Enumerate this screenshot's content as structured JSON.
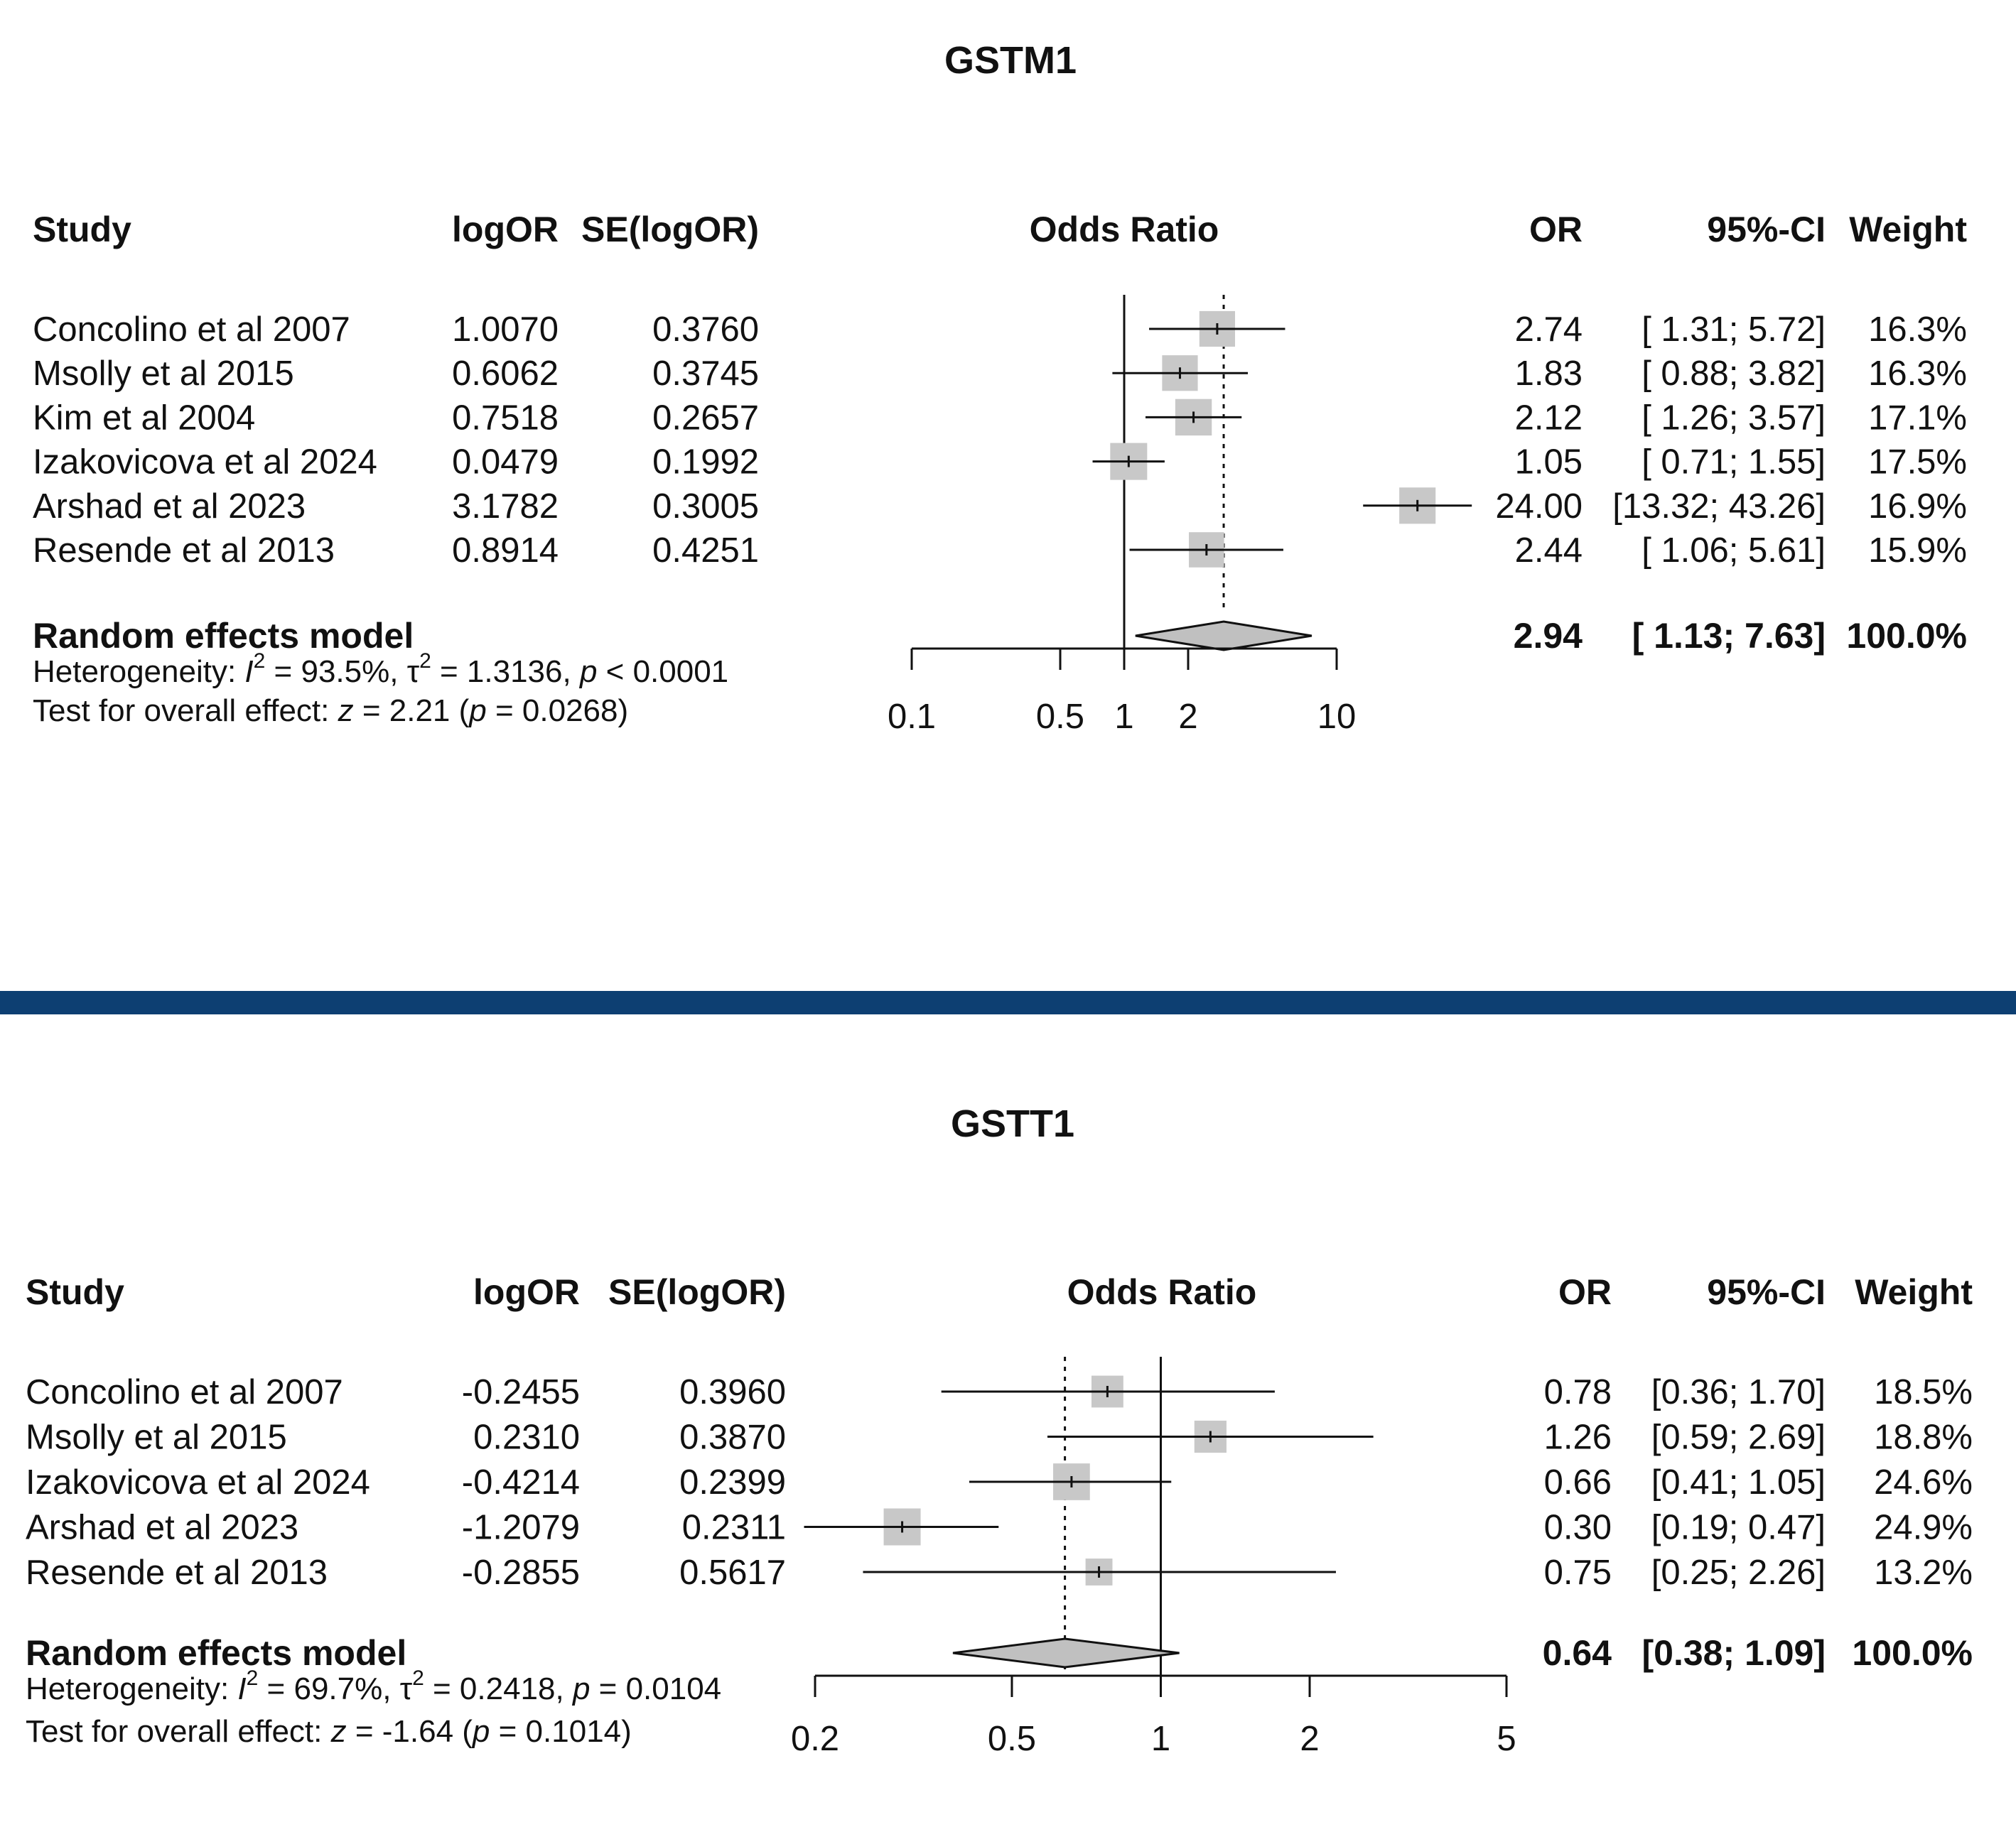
{
  "colors": {
    "divider": "#0d3f72",
    "box_fill": "#c8c8c8",
    "diamond_fill": "#c0c0c0",
    "line": "#111111",
    "background": "#ffffff"
  },
  "chart_data": [
    {
      "type": "forest",
      "title": "GSTM1",
      "columns": {
        "study": "Study",
        "logor": "logOR",
        "se": "SE(logOR)",
        "plot": "Odds Ratio",
        "or": "OR",
        "ci": "95%-CI",
        "weight": "Weight"
      },
      "x_scale": "log",
      "xlim": [
        0.1,
        10
      ],
      "x_ticks": [
        0.1,
        0.5,
        1,
        2,
        10
      ],
      "x_tick_labels": [
        "0.1",
        "0.5",
        "1",
        "2",
        "10"
      ],
      "null_line": 1,
      "pooled_line": 2.94,
      "studies": [
        {
          "name": "Concolino et al 2007",
          "logor": "1.0070",
          "se": "0.3760",
          "or": 2.74,
          "ci_low": 1.31,
          "ci_high": 5.72,
          "weight": 16.3,
          "or_text": "2.74",
          "ci_text": "[ 1.31;  5.72]",
          "weight_text": "16.3%"
        },
        {
          "name": "Msolly et al 2015",
          "logor": "0.6062",
          "se": "0.3745",
          "or": 1.83,
          "ci_low": 0.88,
          "ci_high": 3.82,
          "weight": 16.3,
          "or_text": "1.83",
          "ci_text": "[ 0.88;  3.82]",
          "weight_text": "16.3%"
        },
        {
          "name": "Kim et al 2004",
          "logor": "0.7518",
          "se": "0.2657",
          "or": 2.12,
          "ci_low": 1.26,
          "ci_high": 3.57,
          "weight": 17.1,
          "or_text": "2.12",
          "ci_text": "[ 1.26;  3.57]",
          "weight_text": "17.1%"
        },
        {
          "name": "Izakovicova et al 2024",
          "logor": "0.0479",
          "se": "0.1992",
          "or": 1.05,
          "ci_low": 0.71,
          "ci_high": 1.55,
          "weight": 17.5,
          "or_text": "1.05",
          "ci_text": "[ 0.71;  1.55]",
          "weight_text": "17.5%"
        },
        {
          "name": "Arshad et al 2023",
          "logor": "3.1782",
          "se": "0.3005",
          "or": 24.0,
          "ci_low": 13.32,
          "ci_high": 43.26,
          "weight": 16.9,
          "or_text": "24.00",
          "ci_text": "[13.32; 43.26]",
          "weight_text": "16.9%"
        },
        {
          "name": "Resende et al 2013",
          "logor": "0.8914",
          "se": "0.4251",
          "or": 2.44,
          "ci_low": 1.06,
          "ci_high": 5.61,
          "weight": 15.9,
          "or_text": "2.44",
          "ci_text": "[ 1.06;  5.61]",
          "weight_text": "15.9%"
        }
      ],
      "model": {
        "label": "Random effects model",
        "or": 2.94,
        "ci_low": 1.13,
        "ci_high": 7.63,
        "or_text": "2.94",
        "ci_text": "[ 1.13;  7.63]",
        "weight_text": "100.0%"
      },
      "heterogeneity": {
        "prefix": "Heterogeneity: ",
        "i_symbol": "I",
        "sup1": "2",
        "i2_text": " = 93.5%, ",
        "tau_symbol": "τ",
        "sup2": "2",
        "tau2_text": " = 1.3136, ",
        "p_symbol": "p",
        "p_text": " < 0.0001"
      },
      "overall": {
        "prefix": "Test for overall effect: ",
        "z_symbol": "z",
        "z_text": " = 2.21 (",
        "p_symbol": "p",
        "p_text": " = 0.0268)"
      }
    },
    {
      "type": "forest",
      "title": "GSTT1",
      "columns": {
        "study": "Study",
        "logor": "logOR",
        "se": "SE(logOR)",
        "plot": "Odds Ratio",
        "or": "OR",
        "ci": "95%-CI",
        "weight": "Weight"
      },
      "x_scale": "log",
      "xlim": [
        0.2,
        5
      ],
      "x_ticks": [
        0.2,
        0.5,
        1,
        2,
        5
      ],
      "x_tick_labels": [
        "0.2",
        "0.5",
        "1",
        "2",
        "5"
      ],
      "null_line": 1,
      "pooled_line": 0.64,
      "studies": [
        {
          "name": "Concolino et al 2007",
          "logor": "-0.2455",
          "se": "0.3960",
          "or": 0.78,
          "ci_low": 0.36,
          "ci_high": 1.7,
          "weight": 18.5,
          "or_text": "0.78",
          "ci_text": "[0.36; 1.70]",
          "weight_text": "18.5%"
        },
        {
          "name": "Msolly et al 2015",
          "logor": "0.2310",
          "se": "0.3870",
          "or": 1.26,
          "ci_low": 0.59,
          "ci_high": 2.69,
          "weight": 18.8,
          "or_text": "1.26",
          "ci_text": "[0.59; 2.69]",
          "weight_text": "18.8%"
        },
        {
          "name": "Izakovicova et al 2024",
          "logor": "-0.4214",
          "se": "0.2399",
          "or": 0.66,
          "ci_low": 0.41,
          "ci_high": 1.05,
          "weight": 24.6,
          "or_text": "0.66",
          "ci_text": "[0.41; 1.05]",
          "weight_text": "24.6%"
        },
        {
          "name": "Arshad et al 2023",
          "logor": "-1.2079",
          "se": "0.2311",
          "or": 0.3,
          "ci_low": 0.19,
          "ci_high": 0.47,
          "weight": 24.9,
          "or_text": "0.30",
          "ci_text": "[0.19; 0.47]",
          "weight_text": "24.9%"
        },
        {
          "name": "Resende et al 2013",
          "logor": "-0.2855",
          "se": "0.5617",
          "or": 0.75,
          "ci_low": 0.25,
          "ci_high": 2.26,
          "weight": 13.2,
          "or_text": "0.75",
          "ci_text": "[0.25; 2.26]",
          "weight_text": "13.2%"
        }
      ],
      "model": {
        "label": "Random effects model",
        "or": 0.64,
        "ci_low": 0.38,
        "ci_high": 1.09,
        "or_text": "0.64",
        "ci_text": "[0.38; 1.09]",
        "weight_text": "100.0%"
      },
      "heterogeneity": {
        "prefix": "Heterogeneity: ",
        "i_symbol": "I",
        "sup1": "2",
        "i2_text": " = 69.7%, ",
        "tau_symbol": "τ",
        "sup2": "2",
        "tau2_text": " = 0.2418, ",
        "p_symbol": "p",
        "p_text": " = 0.0104"
      },
      "overall": {
        "prefix": "Test for overall effect: ",
        "z_symbol": "z",
        "z_text": " = -1.64 (",
        "p_symbol": "p",
        "p_text": " = 0.1014)"
      }
    }
  ]
}
